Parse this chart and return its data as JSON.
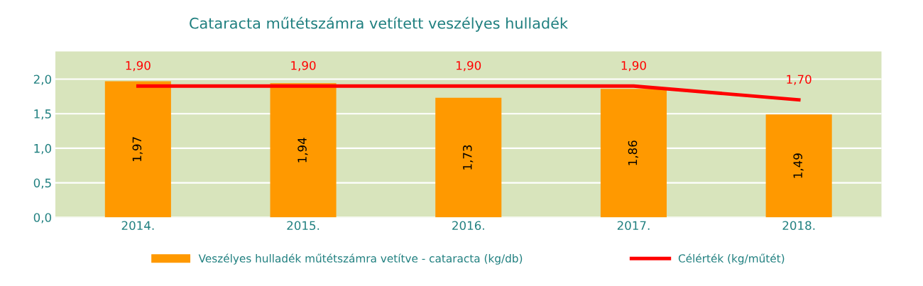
{
  "chart_data": {
    "type": "bar",
    "title": "Cataracta műtétszámra vetített veszélyes hulladék",
    "categories": [
      "2014.",
      "2015.",
      "2016.",
      "2017.",
      "2018."
    ],
    "series": [
      {
        "name": "Veszélyes hulladék műtétszámra vetítve - cataracta (kg/db)",
        "color": "#ff9900",
        "values": [
          1.97,
          1.94,
          1.73,
          1.86,
          1.49
        ],
        "value_labels": [
          "1,97",
          "1,94",
          "1,73",
          "1,86",
          "1,49"
        ]
      },
      {
        "name": "Célérték (kg/műtét)",
        "type": "line",
        "color": "#ff0000",
        "values": [
          1.9,
          1.9,
          1.9,
          1.9,
          1.7
        ],
        "value_labels": [
          "1,90",
          "1,90",
          "1,90",
          "1,90",
          "1,70"
        ]
      }
    ],
    "ylim": [
      0,
      2.4
    ],
    "yticks": [
      {
        "value": 0,
        "label": "0,0"
      },
      {
        "value": 0.5,
        "label": "0,5"
      },
      {
        "value": 1.0,
        "label": "1,0"
      },
      {
        "value": 1.5,
        "label": "1,5"
      },
      {
        "value": 2.0,
        "label": "2,0"
      }
    ],
    "grid": "y",
    "legend": "bottom",
    "marker": "none",
    "line_style": "solid"
  }
}
